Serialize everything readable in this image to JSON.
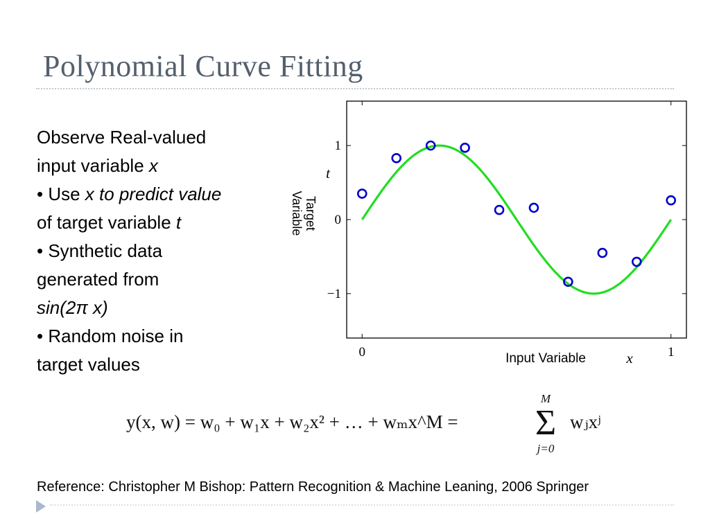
{
  "slide": {
    "title": "Polynomial Curve Fitting",
    "body_lines": [
      [
        {
          "t": "Observe Real-valued",
          "i": false
        }
      ],
      [
        {
          "t": "input variable ",
          "i": false
        },
        {
          "t": "x",
          "i": true
        }
      ],
      [
        {
          "t": "• Use ",
          "i": false
        },
        {
          "t": "x to predict value",
          "i": true
        }
      ],
      [
        {
          "t": "of target variable ",
          "i": false
        },
        {
          "t": "t",
          "i": true
        }
      ],
      [
        {
          "t": "• Synthetic data",
          "i": false
        }
      ],
      [
        {
          "t": "generated from",
          "i": false
        }
      ],
      [
        {
          "t": "sin(2π x)",
          "i": true
        }
      ],
      [
        {
          "t": "• Random noise in",
          "i": false
        }
      ],
      [
        {
          "t": "target values",
          "i": false
        }
      ]
    ],
    "equation": {
      "main": "y(x, w) = w₀ + w₁x + w₂x² + … + wₘx^M =",
      "sum_upper": "M",
      "sum_lower": "j=0",
      "tail": "wⱼxʲ"
    },
    "reference": "Reference: Christopher M Bishop: Pattern Recognition & Machine Leaning, 2006 Springer"
  },
  "chart_data": {
    "type": "scatter",
    "xlabel": "x",
    "ylabel": "t",
    "x_annotation": "Input Variable",
    "y_annotation_lines": [
      "Target",
      "Variable"
    ],
    "xlim": [
      -0.05,
      1.05
    ],
    "ylim": [
      -1.6,
      1.6
    ],
    "x_ticks": [
      {
        "v": 0,
        "label": "0"
      },
      {
        "v": 1,
        "label": "1"
      }
    ],
    "y_ticks": [
      {
        "v": 1,
        "label": "1"
      },
      {
        "v": 0,
        "label": "0"
      },
      {
        "v": -1,
        "label": "−1"
      }
    ],
    "grid": false,
    "series": [
      {
        "kind": "points",
        "color": "#0000cc",
        "x": [
          0,
          0.111,
          0.222,
          0.333,
          0.444,
          0.556,
          0.667,
          0.778,
          0.889,
          1.0
        ],
        "y": [
          0.35,
          0.83,
          1.0,
          0.97,
          0.13,
          0.16,
          -0.84,
          -0.45,
          -0.57,
          0.26
        ]
      },
      {
        "kind": "curve",
        "color": "#22dd22",
        "function": "sin(2π x)",
        "domain": [
          0,
          1
        ]
      }
    ]
  }
}
